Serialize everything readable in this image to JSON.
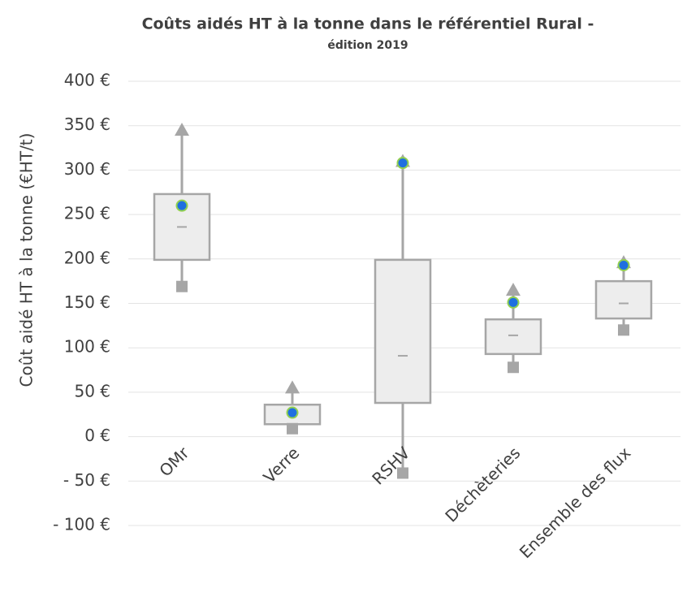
{
  "chart_data": {
    "type": "box",
    "title": "Coûts aidés HT à la tonne dans le référentiel Rural -",
    "subtitle": "édition 2019",
    "y_label": "Coût aidé HT à la tonne  (€HT/t)",
    "categories": [
      "OMr",
      "Verre",
      "RSHV",
      "Déchèteries",
      "Ensemble des flux"
    ],
    "series": [
      {
        "name": "min",
        "color": "#a6a6a6",
        "values": [
          169,
          9,
          -41,
          78,
          120
        ]
      },
      {
        "name": "q1",
        "color": "#a6a6a6",
        "values": [
          199,
          14,
          38,
          93,
          133
        ]
      },
      {
        "name": "median",
        "color": "#a6a6a6",
        "values": [
          236,
          25,
          91,
          114,
          150
        ]
      },
      {
        "name": "q3",
        "color": "#a6a6a6",
        "values": [
          273,
          36,
          199,
          132,
          175
        ]
      },
      {
        "name": "max",
        "color": "#a6a6a6",
        "values": [
          345,
          55,
          310,
          165,
          196
        ]
      },
      {
        "name": "mean",
        "color": "#1f6fe0",
        "values": [
          260,
          27,
          308,
          151,
          193
        ]
      }
    ],
    "ylim": [
      -100,
      400
    ],
    "yticks": [
      {
        "value": -100,
        "label": "- 100 €"
      },
      {
        "value": -50,
        "label": "- 50 €"
      },
      {
        "value": 0,
        "label": "0 €"
      },
      {
        "value": 50,
        "label": "50 €"
      },
      {
        "value": 100,
        "label": "100 €"
      },
      {
        "value": 150,
        "label": "150 €"
      },
      {
        "value": 200,
        "label": "200 €"
      },
      {
        "value": 250,
        "label": "250 €"
      },
      {
        "value": 300,
        "label": "300 €"
      },
      {
        "value": 350,
        "label": "350 €"
      },
      {
        "value": 400,
        "label": "400 €"
      }
    ],
    "grid": true
  }
}
